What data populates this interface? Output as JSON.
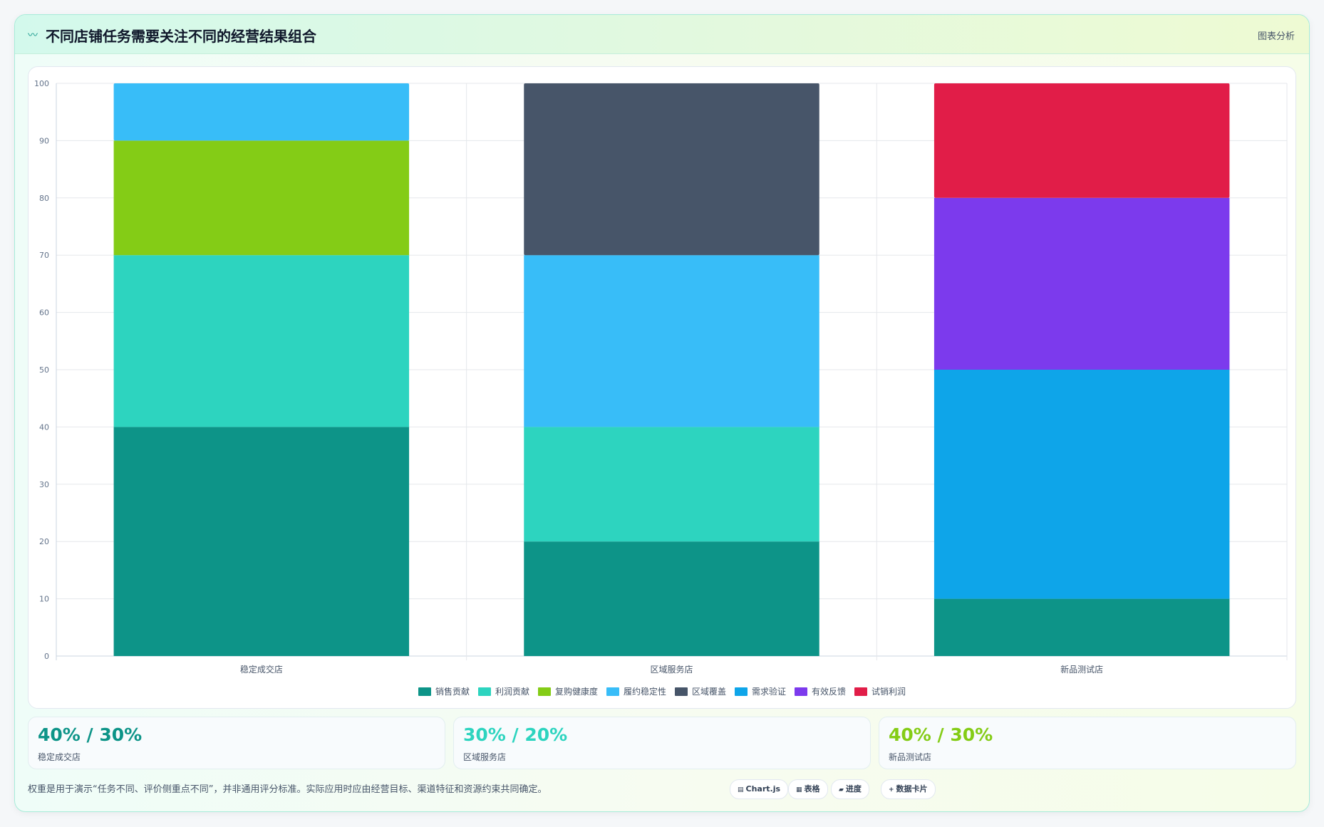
{
  "header": {
    "icon": "chart-line-icon",
    "title": "不同店铺任务需要关注不同的经营结果组合",
    "link_label": "图表分析"
  },
  "chart_data": {
    "type": "bar",
    "stacked": true,
    "title": "",
    "xlabel": "",
    "ylabel": "",
    "ylim": [
      0,
      100
    ],
    "yticks": [
      0,
      10,
      20,
      30,
      40,
      50,
      60,
      70,
      80,
      90,
      100
    ],
    "grid": true,
    "legend_position": "bottom",
    "categories": [
      "稳定成交店",
      "区域服务店",
      "新品测试店"
    ],
    "series": [
      {
        "name": "销售贡献",
        "color": "#0d9488",
        "values": [
          40,
          20,
          10
        ]
      },
      {
        "name": "利润贡献",
        "color": "#2dd4bf",
        "values": [
          30,
          20,
          0
        ]
      },
      {
        "name": "复购健康度",
        "color": "#84cc16",
        "values": [
          20,
          0,
          0
        ]
      },
      {
        "name": "履约稳定性",
        "color": "#38bdf8",
        "values": [
          10,
          30,
          0
        ]
      },
      {
        "name": "区域覆盖",
        "color": "#475569",
        "values": [
          0,
          30,
          0
        ]
      },
      {
        "name": "需求验证",
        "color": "#0ea5e9",
        "values": [
          0,
          0,
          40
        ]
      },
      {
        "name": "有效反馈",
        "color": "#7c3aed",
        "values": [
          0,
          0,
          30
        ]
      },
      {
        "name": "试销利润",
        "color": "#e11d48",
        "values": [
          0,
          0,
          20
        ]
      }
    ]
  },
  "stats": [
    {
      "value": "40% / 30%",
      "label": "稳定成交店",
      "color": "#0d9488"
    },
    {
      "value": "30% / 20%",
      "label": "区域服务店",
      "color": "#2dd4bf"
    },
    {
      "value": "40% / 30%",
      "label": "新品测试店",
      "color": "#84cc16"
    }
  ],
  "footer": {
    "note": "权重是用于演示“任务不同、评价侧重点不同”，并非通用评分标准。实际应用时应由经营目标、渠道特征和资源约束共同确定。",
    "tags": [
      {
        "icon": "grid-icon",
        "label": "Chart.js"
      },
      {
        "icon": "table-icon",
        "label": "表格"
      },
      {
        "icon": "progress-icon",
        "label": "进度"
      },
      {
        "icon": "plus-icon",
        "label": "数据卡片"
      }
    ]
  }
}
